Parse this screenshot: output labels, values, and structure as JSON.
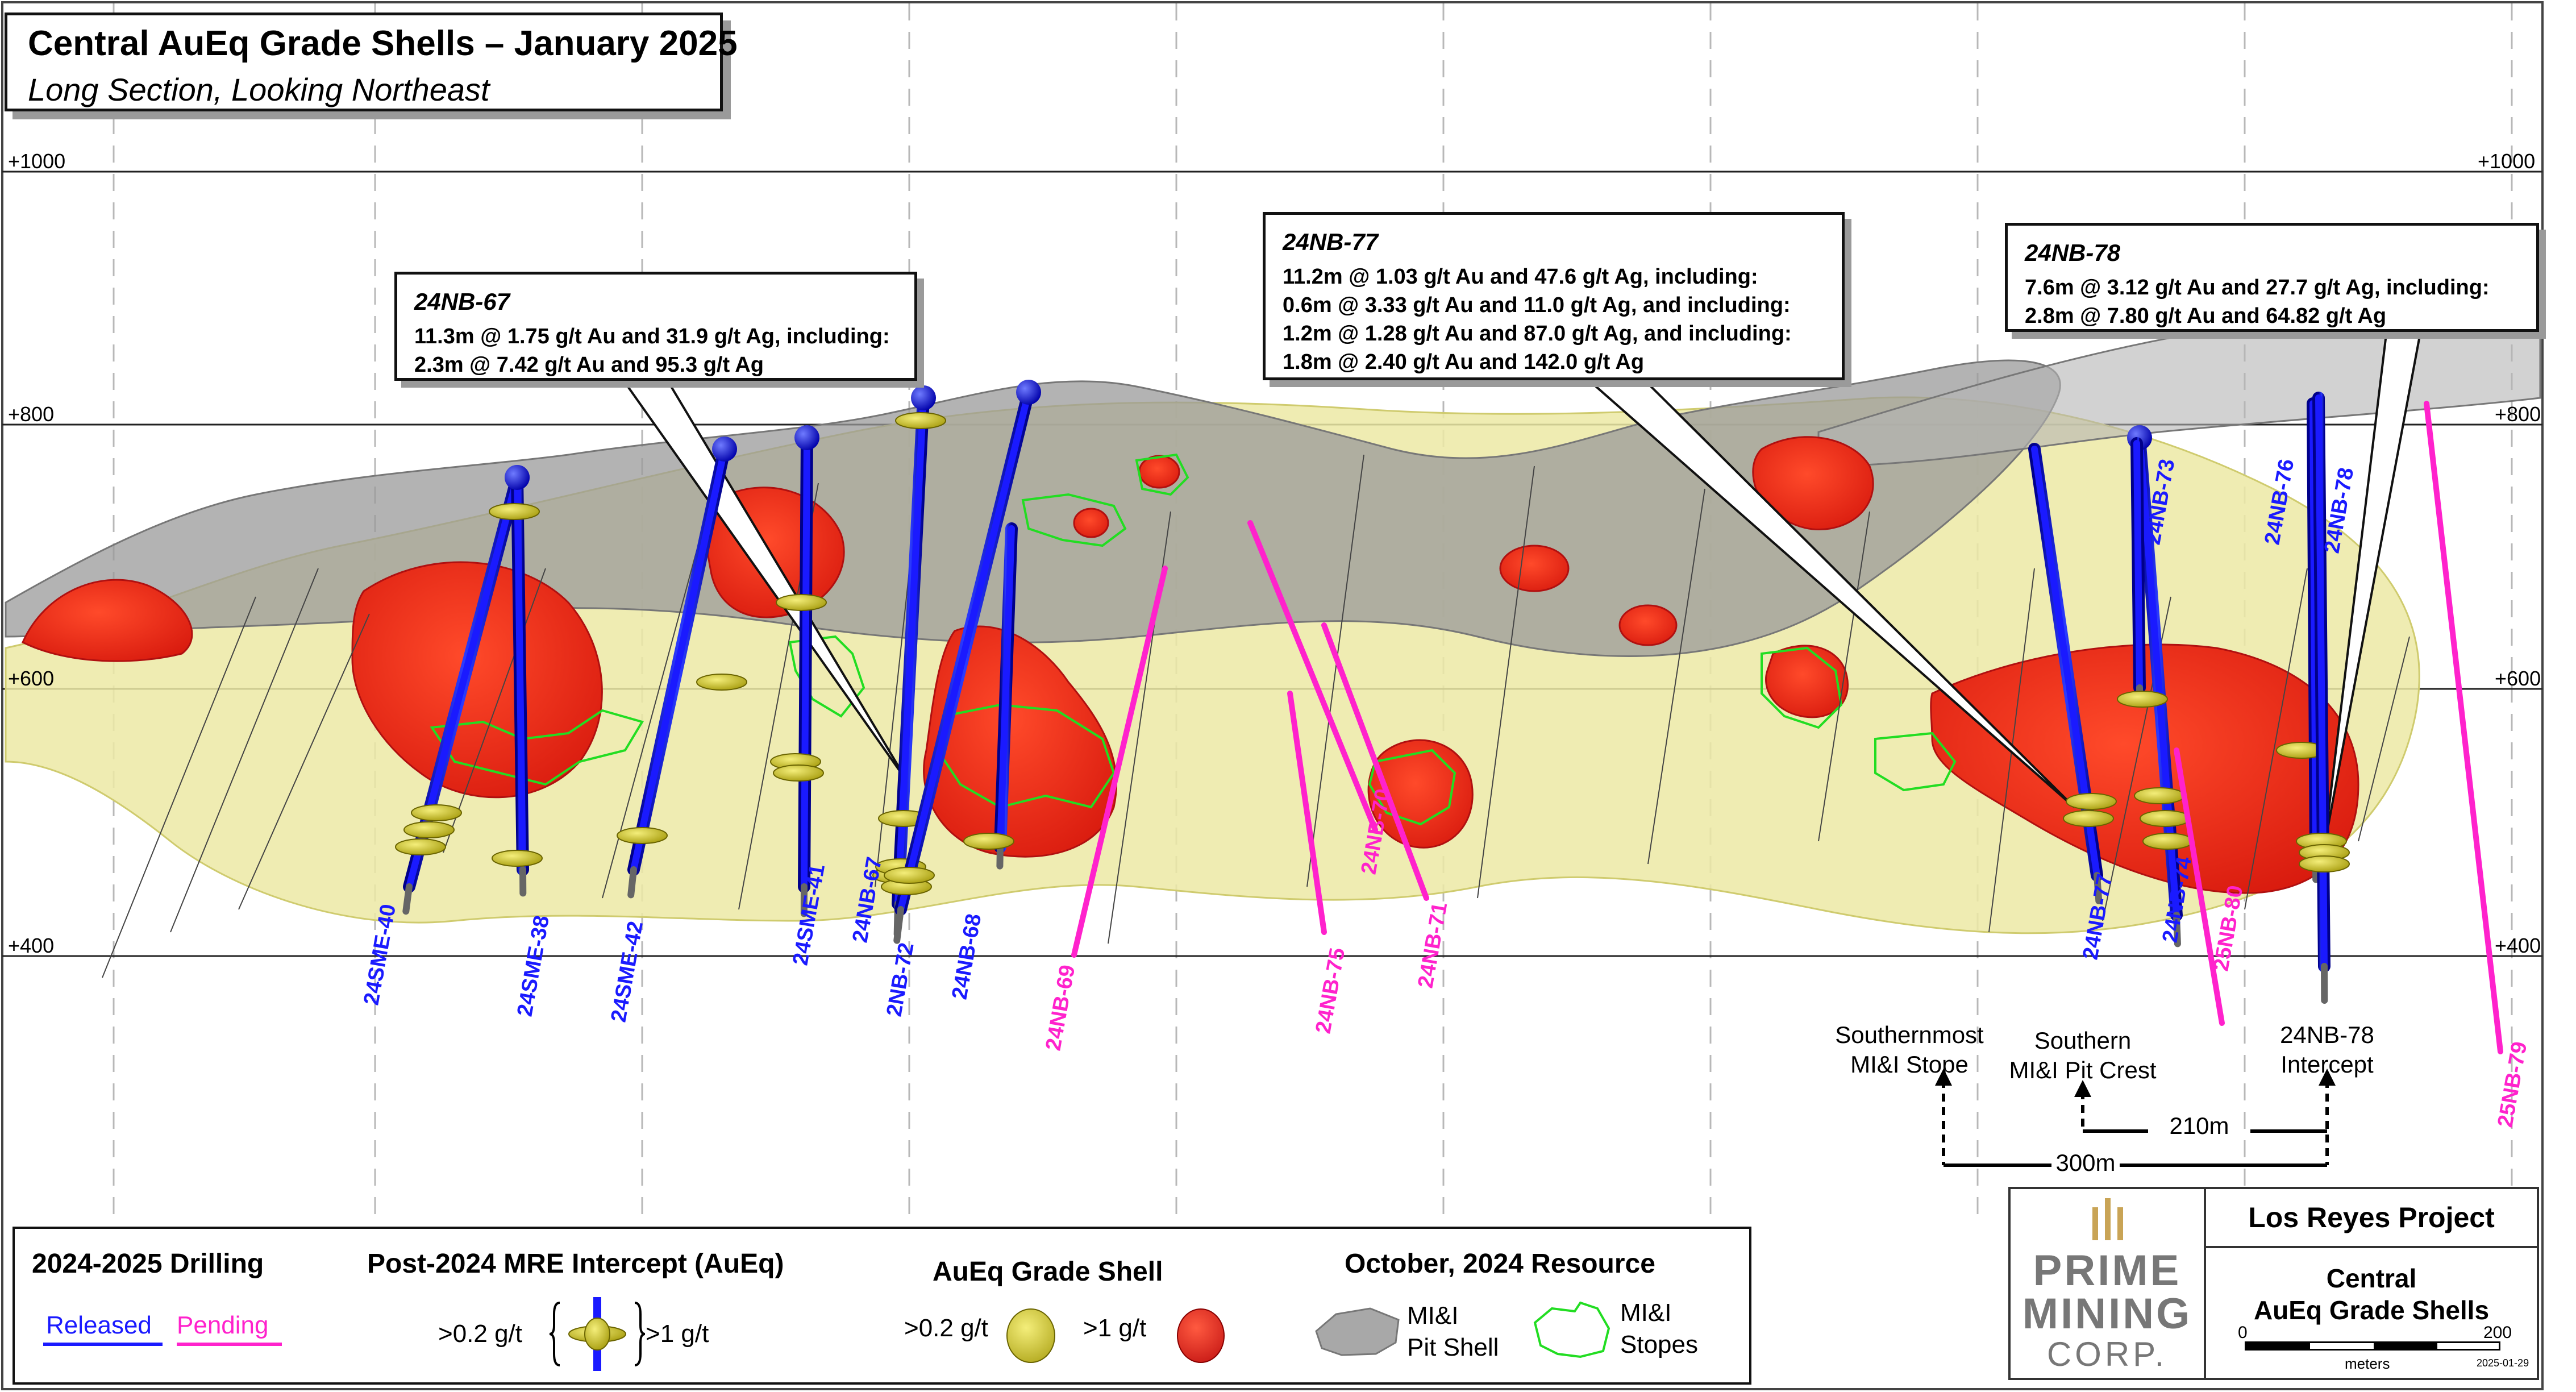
{
  "header": {
    "title": "Central AuEq Grade Shells – January 2025",
    "subtitle": "Long Section, Looking Northeast"
  },
  "elevations": [
    {
      "label": "+1000",
      "value": 1000
    },
    {
      "label": "+800",
      "value": 800
    },
    {
      "label": "+600",
      "value": 600
    },
    {
      "label": "+400",
      "value": 400
    }
  ],
  "callouts": [
    {
      "hole": "24NB-67",
      "lines": [
        "11.3m @ 1.75 g/t Au and 31.9 g/t Ag, including:",
        "2.3m @ 7.42 g/t Au and 95.3 g/t Ag"
      ]
    },
    {
      "hole": "24NB-77",
      "lines": [
        "11.2m @ 1.03 g/t Au and 47.6 g/t Ag, including:",
        "0.6m @ 3.33 g/t Au and 11.0 g/t Ag, and including:",
        "1.2m @ 1.28 g/t Au and 87.0 g/t Ag, and including:",
        "1.8m @ 2.40 g/t Au and 142.0 g/t Ag"
      ]
    },
    {
      "hole": "24NB-78",
      "lines": [
        "7.6m @ 3.12 g/t Au and 27.7 g/t Ag, including:",
        "2.8m @ 7.80 g/t Au and 64.82 g/t Ag"
      ]
    }
  ],
  "drillholes": {
    "released": [
      "24SME-40",
      "24SME-38",
      "24SME-42",
      "24SME-41",
      "24NB-67",
      "2NB-72",
      "24NB-68",
      "24NB-77",
      "24NB-74",
      "24NB-73",
      "24NB-76",
      "24NB-78"
    ],
    "pending": [
      "24NB-69",
      "24NB-75",
      "24NB-70",
      "24NB-71",
      "25NB-80",
      "25NB-79"
    ]
  },
  "annotations": {
    "stope": "Southernmost\nMI&I Stope",
    "pit_crest": "Southern\nMI&I Pit Crest",
    "intercept": "24NB-78\nIntercept",
    "dist_210": "210m",
    "dist_300": "300m"
  },
  "legend": {
    "drilling_title": "2024-2025 Drilling",
    "released": "Released",
    "pending": "Pending",
    "intercept_title": "Post-2024 MRE Intercept (AuEq)",
    "low_grade": ">0.2 g/t",
    "high_grade": ">1 g/t",
    "shell_title": "AuEq Grade Shell",
    "shell_low": ">0.2 g/t",
    "shell_high": ">1 g/t",
    "resource_title": "October, 2024 Resource",
    "pit_shell": "MI&I\nPit Shell",
    "stopes": "MI&I\nStopes"
  },
  "logo": {
    "line1": "PRIME",
    "line2": "MINING",
    "line3": "CORP."
  },
  "titleblock": {
    "project": "Los Reyes Project",
    "map_title": "Central\nAuEq Grade Shells",
    "scale_start": "0",
    "scale_end": "200",
    "scale_unit": "meters",
    "date": "2025-01-29"
  },
  "colors": {
    "released": "#1a1aff",
    "pending": "#ff22cc",
    "grade_low": "#e8e6a0",
    "grade_high": "#ee2211",
    "stope": "#22dd22",
    "pit_shell": "#8a8a8a",
    "logo_gold": "#c9a456",
    "logo_grey": "#777777"
  }
}
